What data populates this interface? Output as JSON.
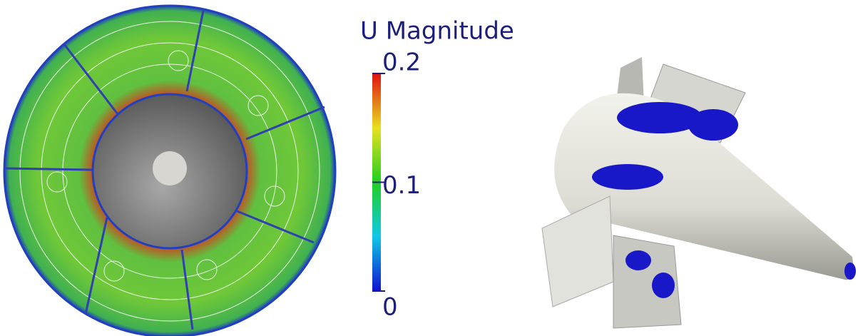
{
  "colorbar": {
    "title": "U Magnitude",
    "range": [
      0,
      0.2
    ],
    "ticks": [
      0,
      0.1,
      0.2
    ]
  }
}
